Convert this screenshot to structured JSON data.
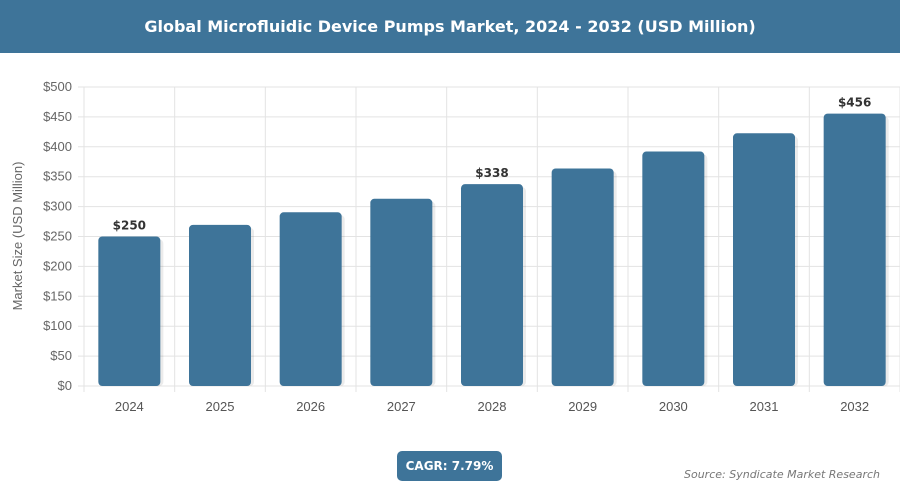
{
  "header": {
    "title": "Global Microfluidic Device Pumps Market, 2024 - 2032 (USD Million)"
  },
  "footer": {
    "cagr": "CAGR: 7.79%",
    "source": "Source: Syndicate Market Research"
  },
  "colors": {
    "bar": "#3e7499",
    "header": "#3e7499"
  },
  "chart_data": {
    "type": "bar",
    "title": "Global Microfluidic Device Pumps Market, 2024 - 2032 (USD Million)",
    "xlabel": "",
    "ylabel": "Market Size (USD Million)",
    "categories": [
      "2024",
      "2025",
      "2026",
      "2027",
      "2028",
      "2029",
      "2030",
      "2031",
      "2032"
    ],
    "values": [
      250,
      269.5,
      290.5,
      313.1,
      337.5,
      363.8,
      392.1,
      422.6,
      455.5
    ],
    "data_labels": {
      "0": "$250",
      "4": "$338",
      "8": "$456"
    },
    "ylim": [
      0,
      500
    ],
    "yticks": [
      "$0",
      "$50",
      "$100",
      "$150",
      "$200",
      "$250",
      "$300",
      "$350",
      "$400",
      "$450",
      "$500"
    ],
    "grid": true,
    "legend": "none"
  }
}
